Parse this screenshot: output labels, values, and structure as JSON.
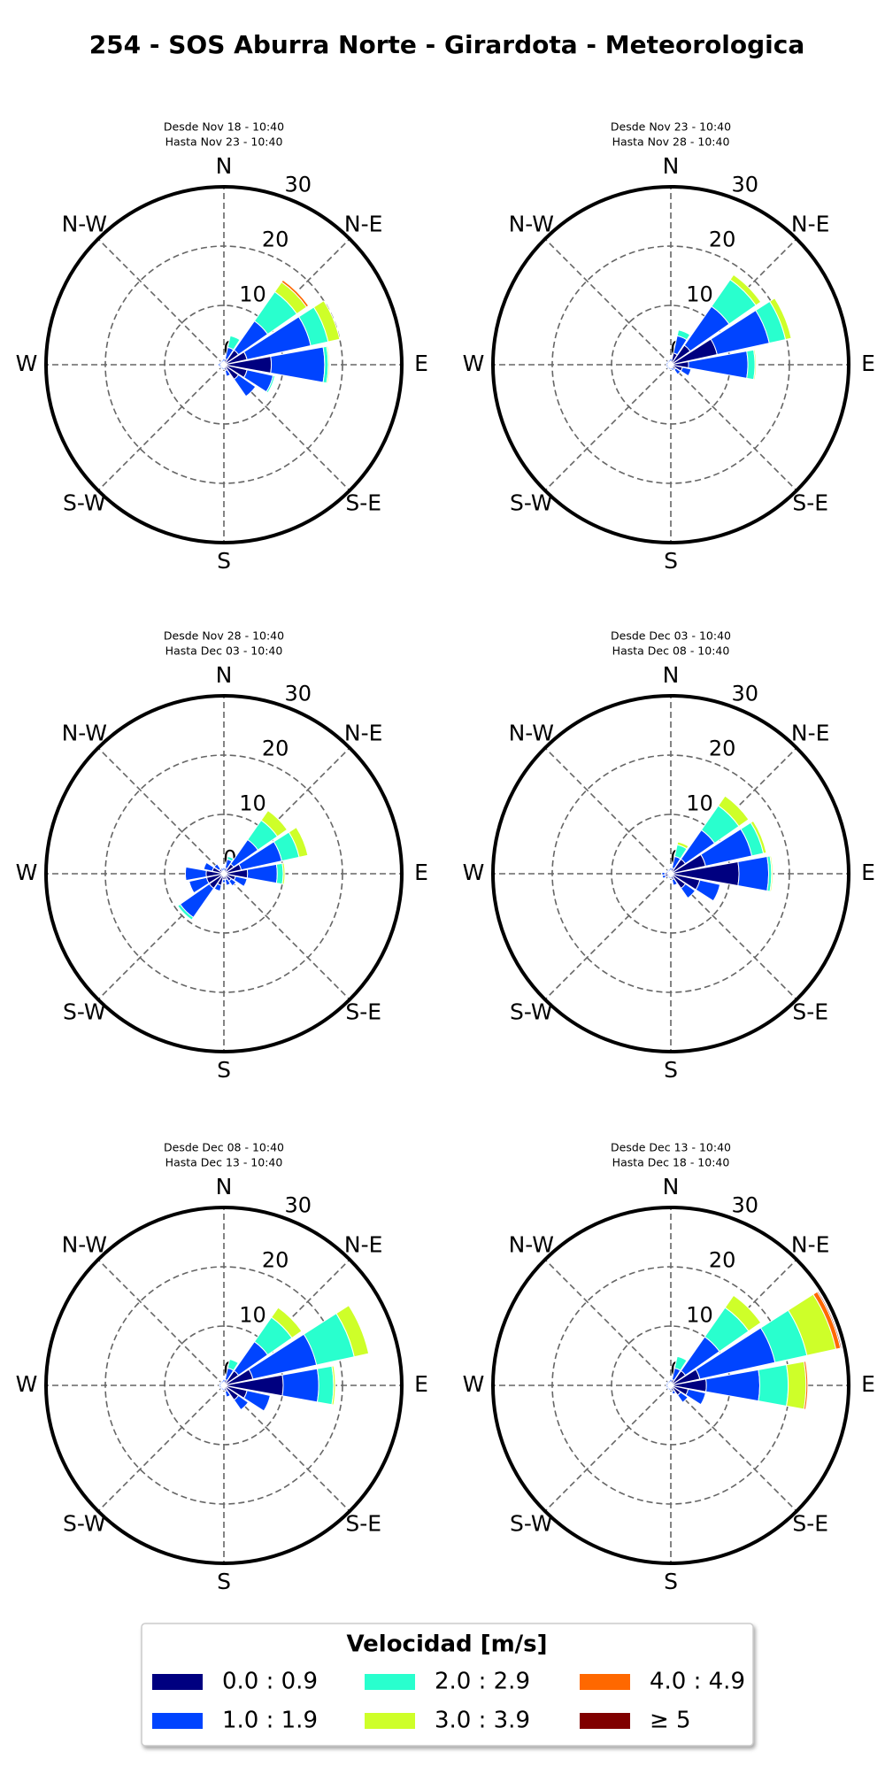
{
  "title": "254 - SOS Aburra Norte - Girardota - Meteorologica",
  "legend_title": "Velocidad [m/s]",
  "chart_data": [
    {
      "type": "windrose",
      "subtitle": [
        "Desde Nov 18 - 10:40",
        "Hasta Nov 23 - 10:40"
      ],
      "x": [
        0,
        22.5,
        45,
        67.5,
        90,
        112.5,
        135,
        157.5,
        180,
        202.5,
        225,
        247.5,
        270,
        292.5,
        315,
        337.5
      ],
      "xticks": [
        {
          "value": 0,
          "label": "N"
        },
        {
          "value": 45,
          "label": "N-E"
        },
        {
          "value": 90,
          "label": "E"
        },
        {
          "value": 135,
          "label": "S-E"
        },
        {
          "value": 180,
          "label": "S"
        },
        {
          "value": 225,
          "label": "S-W"
        },
        {
          "value": 270,
          "label": "W"
        },
        {
          "value": 315,
          "label": "N-W"
        }
      ],
      "rlim": [
        0,
        30
      ],
      "rticks": [
        0,
        10,
        20,
        30
      ],
      "series": [
        {
          "name": "0.0 : 0.9",
          "color": "#000080",
          "values": [
            0.5,
            1,
            3,
            4,
            8,
            4,
            3,
            1,
            0.5,
            0.5,
            0.5,
            0.5,
            0.5,
            0.5,
            0.5,
            0.5
          ]
        },
        {
          "name": "1.0 : 1.9",
          "color": "#0044ff",
          "values": [
            0.5,
            2,
            6,
            11,
            9,
            4.5,
            3.5,
            1,
            0.3,
            0.3,
            0.3,
            0.3,
            0.5,
            0.3,
            0.3,
            0.3
          ]
        },
        {
          "name": "2.0 : 2.9",
          "color": "#29ffce",
          "values": [
            0,
            2,
            6,
            3,
            0.6,
            0.3,
            0,
            0,
            0,
            0,
            0,
            0,
            0,
            0,
            0,
            0
          ]
        },
        {
          "name": "3.0 : 3.9",
          "color": "#ceff29",
          "values": [
            0,
            0,
            2,
            2,
            0.2,
            0,
            0,
            0,
            0,
            0,
            0,
            0,
            0,
            0,
            0,
            0
          ]
        },
        {
          "name": "4.0 : 4.9",
          "color": "#ff6800",
          "values": [
            0,
            0,
            0.4,
            0,
            0,
            0,
            0,
            0,
            0,
            0,
            0,
            0,
            0,
            0,
            0,
            0
          ]
        },
        {
          "name": "≥ 5",
          "color": "#800000",
          "values": [
            0,
            0,
            0,
            0,
            0,
            0,
            0,
            0,
            0,
            0,
            0,
            0,
            0,
            0,
            0,
            0
          ]
        }
      ]
    },
    {
      "type": "windrose",
      "subtitle": [
        "Desde Nov 23 - 10:40",
        "Hasta Nov 28 - 10:40"
      ],
      "x": [
        0,
        22.5,
        45,
        67.5,
        90,
        112.5,
        135,
        157.5,
        180,
        202.5,
        225,
        247.5,
        270,
        292.5,
        315,
        337.5
      ],
      "xticks": [
        {
          "value": 0,
          "label": "N"
        },
        {
          "value": 45,
          "label": "N-E"
        },
        {
          "value": 90,
          "label": "E"
        },
        {
          "value": 135,
          "label": "S-E"
        },
        {
          "value": 180,
          "label": "S"
        },
        {
          "value": 225,
          "label": "S-W"
        },
        {
          "value": 270,
          "label": "W"
        },
        {
          "value": 315,
          "label": "N-W"
        }
      ],
      "rlim": [
        0,
        30
      ],
      "rticks": [
        0,
        10,
        20,
        30
      ],
      "series": [
        {
          "name": "0.0 : 0.9",
          "color": "#000080",
          "values": [
            0.5,
            2,
            4,
            8,
            3,
            2,
            1,
            0.5,
            0.5,
            0.5,
            0.5,
            0.5,
            0.5,
            0.5,
            0.5,
            0.5
          ]
        },
        {
          "name": "1.0 : 1.9",
          "color": "#0044ff",
          "values": [
            0.5,
            3,
            8,
            9,
            10,
            1.5,
            1,
            0.5,
            0.3,
            0.3,
            0.3,
            0.3,
            0.3,
            0.3,
            0.3,
            0.3
          ]
        },
        {
          "name": "2.0 : 2.9",
          "color": "#29ffce",
          "values": [
            0,
            1,
            5.5,
            2.8,
            1.2,
            0,
            0,
            0,
            0,
            0,
            0,
            0,
            0,
            0,
            0,
            0
          ]
        },
        {
          "name": "3.0 : 3.9",
          "color": "#ceff29",
          "values": [
            0,
            0,
            1,
            1,
            0.2,
            0,
            0,
            0,
            0,
            0,
            0,
            0,
            0,
            0,
            0,
            0
          ]
        },
        {
          "name": "4.0 : 4.9",
          "color": "#ff6800",
          "values": [
            0,
            0,
            0,
            0,
            0,
            0,
            0,
            0,
            0,
            0,
            0,
            0,
            0,
            0,
            0,
            0
          ]
        },
        {
          "name": "≥ 5",
          "color": "#800000",
          "values": [
            0,
            0,
            0,
            0,
            0,
            0,
            0,
            0,
            0,
            0,
            0,
            0,
            0,
            0,
            0,
            0
          ]
        }
      ]
    },
    {
      "type": "windrose",
      "subtitle": [
        "Desde Nov 28 - 10:40",
        "Hasta Dec 03 - 10:40"
      ],
      "x": [
        0,
        22.5,
        45,
        67.5,
        90,
        112.5,
        135,
        157.5,
        180,
        202.5,
        225,
        247.5,
        270,
        292.5,
        315,
        337.5
      ],
      "xticks": [
        {
          "value": 0,
          "label": "N"
        },
        {
          "value": 45,
          "label": "N-E"
        },
        {
          "value": 90,
          "label": "E"
        },
        {
          "value": 135,
          "label": "S-E"
        },
        {
          "value": 180,
          "label": "S"
        },
        {
          "value": 225,
          "label": "S-W"
        },
        {
          "value": 270,
          "label": "W"
        },
        {
          "value": 315,
          "label": "N-W"
        }
      ],
      "rlim": [
        0,
        30
      ],
      "rticks": [
        0,
        10,
        20,
        30
      ],
      "series": [
        {
          "name": "0.0 : 0.9",
          "color": "#000080",
          "values": [
            0.5,
            1,
            2,
            3,
            4,
            2,
            1.5,
            1,
            1,
            2,
            3,
            3,
            3,
            2,
            1,
            0.5
          ]
        },
        {
          "name": "1.0 : 1.9",
          "color": "#0044ff",
          "values": [
            0.5,
            1.5,
            5,
            7,
            5,
            2,
            1,
            1,
            0.5,
            1,
            6,
            3,
            3.5,
            1.5,
            1,
            0.5
          ]
        },
        {
          "name": "2.0 : 2.9",
          "color": "#29ffce",
          "values": [
            0,
            0.5,
            4,
            3,
            1,
            0,
            0,
            0,
            0,
            0,
            0.5,
            0,
            0,
            0,
            0,
            0
          ]
        },
        {
          "name": "3.0 : 3.9",
          "color": "#ceff29",
          "values": [
            0,
            0,
            2,
            1.5,
            0.3,
            0,
            0,
            0,
            0,
            0,
            0,
            0,
            0,
            0,
            0,
            0
          ]
        },
        {
          "name": "4.0 : 4.9",
          "color": "#ff6800",
          "values": [
            0,
            0,
            0,
            0,
            0,
            0,
            0,
            0,
            0,
            0,
            0,
            0,
            0,
            0,
            0,
            0
          ]
        },
        {
          "name": "≥ 5",
          "color": "#800000",
          "values": [
            0,
            0,
            0,
            0,
            0,
            0,
            0,
            0,
            0,
            0,
            0,
            0,
            0,
            0,
            0,
            0
          ]
        }
      ]
    },
    {
      "type": "windrose",
      "subtitle": [
        "Desde Dec 03 - 10:40",
        "Hasta Dec 08 - 10:40"
      ],
      "x": [
        0,
        22.5,
        45,
        67.5,
        90,
        112.5,
        135,
        157.5,
        180,
        202.5,
        225,
        247.5,
        270,
        292.5,
        315,
        337.5
      ],
      "xticks": [
        {
          "value": 0,
          "label": "N"
        },
        {
          "value": 45,
          "label": "N-E"
        },
        {
          "value": 90,
          "label": "E"
        },
        {
          "value": 135,
          "label": "S-E"
        },
        {
          "value": 180,
          "label": "S"
        },
        {
          "value": 225,
          "label": "S-W"
        },
        {
          "value": 270,
          "label": "W"
        },
        {
          "value": 315,
          "label": "N-W"
        }
      ],
      "rlim": [
        0,
        30
      ],
      "rticks": [
        0,
        10,
        20,
        30
      ],
      "series": [
        {
          "name": "0.0 : 0.9",
          "color": "#000080",
          "values": [
            0.5,
            1,
            3,
            6,
            11.5,
            5,
            3,
            1,
            0.5,
            0.5,
            0.5,
            1,
            1,
            0.5,
            0.5,
            0.5
          ]
        },
        {
          "name": "1.0 : 1.9",
          "color": "#0044ff",
          "values": [
            0.5,
            2,
            6,
            8,
            5,
            3.5,
            2,
            1,
            0.3,
            0.3,
            0.3,
            0.5,
            0.5,
            0.3,
            0.3,
            0.3
          ]
        },
        {
          "name": "2.0 : 2.9",
          "color": "#29ffce",
          "values": [
            0,
            2,
            5,
            2,
            0.5,
            0,
            0,
            0,
            0,
            0,
            0,
            0,
            0,
            0,
            0,
            0
          ]
        },
        {
          "name": "3.0 : 3.9",
          "color": "#ceff29",
          "values": [
            0,
            0.5,
            2,
            0.5,
            0.2,
            0,
            0,
            0,
            0,
            0,
            0,
            0,
            0,
            0,
            0,
            0
          ]
        },
        {
          "name": "4.0 : 4.9",
          "color": "#ff6800",
          "values": [
            0,
            0,
            0,
            0,
            0,
            0,
            0,
            0,
            0,
            0,
            0,
            0,
            0,
            0,
            0,
            0
          ]
        },
        {
          "name": "≥ 5",
          "color": "#800000",
          "values": [
            0,
            0,
            0,
            0,
            0,
            0,
            0,
            0,
            0,
            0,
            0,
            0,
            0,
            0,
            0,
            0
          ]
        }
      ]
    },
    {
      "type": "windrose",
      "subtitle": [
        "Desde Dec 08 - 10:40",
        "Hasta Dec 13 - 10:40"
      ],
      "x": [
        0,
        22.5,
        45,
        67.5,
        90,
        112.5,
        135,
        157.5,
        180,
        202.5,
        225,
        247.5,
        270,
        292.5,
        315,
        337.5
      ],
      "xticks": [
        {
          "value": 0,
          "label": "N"
        },
        {
          "value": 45,
          "label": "N-E"
        },
        {
          "value": 90,
          "label": "E"
        },
        {
          "value": 135,
          "label": "S-E"
        },
        {
          "value": 180,
          "label": "S"
        },
        {
          "value": 225,
          "label": "S-W"
        },
        {
          "value": 270,
          "label": "W"
        },
        {
          "value": 315,
          "label": "N-W"
        }
      ],
      "rlim": [
        0,
        30
      ],
      "rticks": [
        0,
        10,
        20,
        30
      ],
      "series": [
        {
          "name": "0.0 : 0.9",
          "color": "#000080",
          "values": [
            0.5,
            1,
            3,
            5,
            10,
            4,
            3,
            1,
            0.5,
            0.5,
            0.5,
            0.5,
            0.5,
            0.5,
            0.5,
            0.5
          ]
        },
        {
          "name": "1.0 : 1.9",
          "color": "#0044ff",
          "values": [
            0.5,
            2,
            6,
            11,
            6,
            4,
            2,
            1,
            0.3,
            0.3,
            0.3,
            0.3,
            0.3,
            0.3,
            0.3,
            0.3
          ]
        },
        {
          "name": "2.0 : 2.9",
          "color": "#29ffce",
          "values": [
            0,
            1.5,
            5,
            6.5,
            2.5,
            0,
            0,
            0,
            0,
            0,
            0,
            0,
            0,
            0,
            0,
            0
          ]
        },
        {
          "name": "3.0 : 3.9",
          "color": "#ceff29",
          "values": [
            0,
            0,
            2,
            2.5,
            0.3,
            0,
            0,
            0,
            0,
            0,
            0,
            0,
            0,
            0,
            0,
            0
          ]
        },
        {
          "name": "4.0 : 4.9",
          "color": "#ff6800",
          "values": [
            0,
            0,
            0,
            0,
            0,
            0,
            0,
            0,
            0,
            0,
            0,
            0,
            0,
            0,
            0,
            0
          ]
        },
        {
          "name": "≥ 5",
          "color": "#800000",
          "values": [
            0,
            0,
            0,
            0,
            0,
            0,
            0,
            0,
            0,
            0,
            0,
            0,
            0,
            0,
            0,
            0
          ]
        }
      ]
    },
    {
      "type": "windrose",
      "subtitle": [
        "Desde Dec 13 - 10:40",
        "Hasta Dec 18 - 10:40"
      ],
      "x": [
        0,
        22.5,
        45,
        67.5,
        90,
        112.5,
        135,
        157.5,
        180,
        202.5,
        225,
        247.5,
        270,
        292.5,
        315,
        337.5
      ],
      "xticks": [
        {
          "value": 0,
          "label": "N"
        },
        {
          "value": 45,
          "label": "N-E"
        },
        {
          "value": 90,
          "label": "E"
        },
        {
          "value": 135,
          "label": "S-E"
        },
        {
          "value": 180,
          "label": "S"
        },
        {
          "value": 225,
          "label": "S-W"
        },
        {
          "value": 270,
          "label": "W"
        },
        {
          "value": 315,
          "label": "N-W"
        }
      ],
      "rlim": [
        0,
        30
      ],
      "rticks": [
        0,
        10,
        20,
        30
      ],
      "series": [
        {
          "name": "0.0 : 0.9",
          "color": "#000080",
          "values": [
            0.5,
            1,
            3,
            5,
            6,
            3,
            2,
            1,
            0.5,
            0.5,
            0.5,
            0.5,
            0.5,
            0.5,
            0.5,
            0.5
          ]
        },
        {
          "name": "1.0 : 1.9",
          "color": "#0044ff",
          "values": [
            0.5,
            2,
            7,
            13,
            9,
            3,
            1.5,
            0.5,
            0.3,
            0.3,
            0.3,
            0.3,
            0.3,
            0.3,
            0.3,
            0.3
          ]
        },
        {
          "name": "2.0 : 2.9",
          "color": "#29ffce",
          "values": [
            0,
            2,
            6,
            5.5,
            4.8,
            0,
            0,
            0,
            0,
            0,
            0,
            0,
            0,
            0,
            0,
            0
          ]
        },
        {
          "name": "3.0 : 3.9",
          "color": "#ceff29",
          "values": [
            0,
            0,
            2.5,
            5,
            3,
            0,
            0,
            0,
            0,
            0,
            0,
            0,
            0,
            0,
            0,
            0
          ]
        },
        {
          "name": "4.0 : 4.9",
          "color": "#ff6800",
          "values": [
            0,
            0,
            0,
            0.8,
            0.3,
            0,
            0,
            0,
            0,
            0,
            0,
            0,
            0,
            0,
            0,
            0
          ]
        },
        {
          "name": "≥ 5",
          "color": "#800000",
          "values": [
            0,
            0,
            0,
            0.2,
            0,
            0,
            0,
            0,
            0,
            0,
            0,
            0,
            0,
            0,
            0,
            0
          ]
        }
      ]
    }
  ]
}
